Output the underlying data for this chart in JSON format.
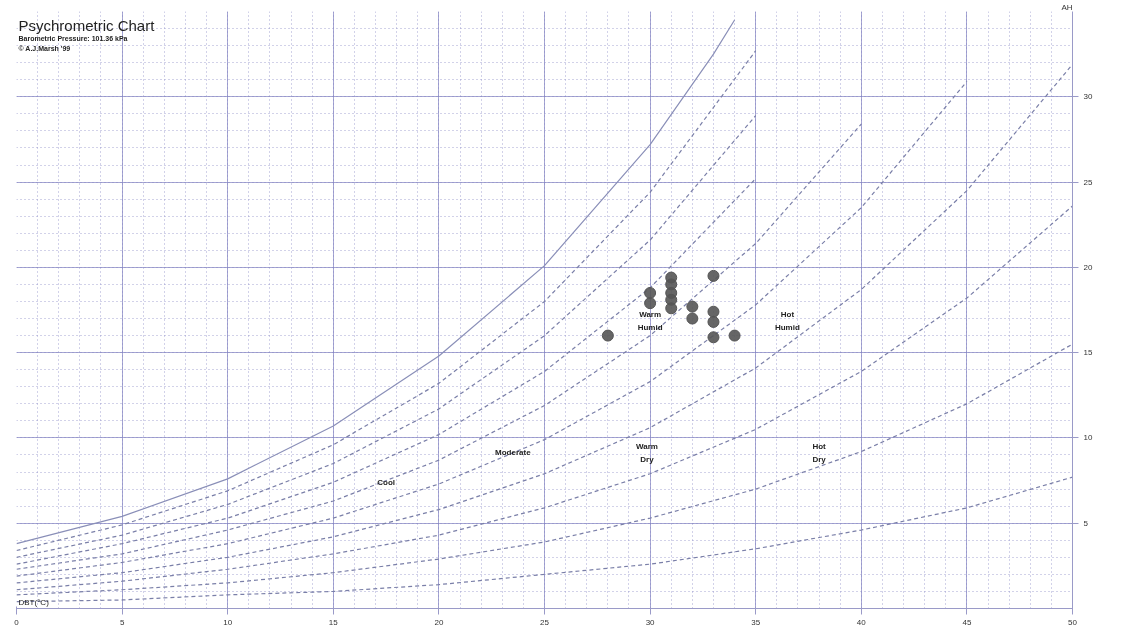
{
  "chart_data": {
    "type": "scatter",
    "title": "Psychrometric Chart",
    "subtitle": "Barometric Pressure: 101.36 kPa",
    "xlabel": "DBT(°C)",
    "ylabel": "AH",
    "xlim": [
      0,
      50
    ],
    "ylim": [
      0,
      35
    ],
    "xticks": [
      0,
      5,
      10,
      15,
      20,
      25,
      30,
      35,
      40,
      45,
      50
    ],
    "yticks": [
      5,
      10,
      15,
      20,
      25,
      30
    ],
    "grid": true,
    "series": [
      {
        "type": "line",
        "line_style": "solid",
        "color": "#8a8fb8",
        "x": [
          0,
          5,
          10,
          15,
          20,
          25,
          30,
          33,
          34
        ],
        "values": [
          3.8,
          5.4,
          7.6,
          10.7,
          14.8,
          20.1,
          27.2,
          32.5,
          34.5
        ]
      },
      {
        "type": "line",
        "line_style": "dashed",
        "color": "#7a7fa8",
        "x": [
          0,
          5,
          10,
          15,
          20,
          25,
          30,
          35
        ],
        "values": [
          3.4,
          4.9,
          6.9,
          9.6,
          13.2,
          18.0,
          24.4,
          32.7
        ]
      },
      {
        "type": "line",
        "line_style": "dashed",
        "color": "#7a7fa8",
        "x": [
          0,
          5,
          10,
          15,
          20,
          25,
          30,
          35
        ],
        "values": [
          3.0,
          4.3,
          6.1,
          8.5,
          11.7,
          16.0,
          21.6,
          28.9
        ]
      },
      {
        "type": "line",
        "line_style": "dashed",
        "color": "#7a7fa8",
        "x": [
          0,
          5,
          10,
          15,
          20,
          25,
          30,
          35
        ],
        "values": [
          2.6,
          3.8,
          5.3,
          7.4,
          10.2,
          13.9,
          18.8,
          25.2
        ]
      },
      {
        "type": "line",
        "line_style": "dashed",
        "color": "#7a7fa8",
        "x": [
          0,
          5,
          10,
          15,
          20,
          25,
          30,
          35,
          40
        ],
        "values": [
          2.3,
          3.2,
          4.6,
          6.3,
          8.7,
          11.9,
          16.0,
          21.4,
          28.4
        ]
      },
      {
        "type": "line",
        "line_style": "dashed",
        "color": "#7a7fa8",
        "x": [
          0,
          5,
          10,
          15,
          20,
          25,
          30,
          35,
          40,
          45
        ],
        "values": [
          1.9,
          2.7,
          3.8,
          5.3,
          7.3,
          9.9,
          13.3,
          17.8,
          23.5,
          30.9
        ]
      },
      {
        "type": "line",
        "line_style": "dashed",
        "color": "#7a7fa8",
        "x": [
          0,
          5,
          10,
          15,
          20,
          25,
          30,
          35,
          40,
          45,
          50
        ],
        "values": [
          1.5,
          2.1,
          3.0,
          4.2,
          5.8,
          7.9,
          10.6,
          14.1,
          18.7,
          24.5,
          31.9
        ]
      },
      {
        "type": "line",
        "line_style": "dashed",
        "color": "#7a7fa8",
        "x": [
          0,
          5,
          10,
          15,
          20,
          25,
          30,
          35,
          40,
          45,
          50
        ],
        "values": [
          1.1,
          1.6,
          2.3,
          3.2,
          4.3,
          5.9,
          7.9,
          10.5,
          13.9,
          18.2,
          23.6
        ]
      },
      {
        "type": "line",
        "line_style": "dashed",
        "color": "#7a7fa8",
        "x": [
          0,
          5,
          10,
          15,
          20,
          25,
          30,
          35,
          40,
          45,
          50
        ],
        "values": [
          0.8,
          1.1,
          1.5,
          2.1,
          2.9,
          3.9,
          5.3,
          7.0,
          9.2,
          12.0,
          15.5
        ]
      },
      {
        "type": "line",
        "line_style": "dashed",
        "color": "#7a7fa8",
        "x": [
          0,
          5,
          10,
          15,
          20,
          25,
          30,
          35,
          40,
          45,
          50
        ],
        "values": [
          0.4,
          0.5,
          0.8,
          1.0,
          1.4,
          2.0,
          2.6,
          3.5,
          4.6,
          5.9,
          7.7
        ]
      },
      {
        "marker": "circle",
        "color": "#555555",
        "x": [
          28,
          30,
          30,
          31,
          31,
          31,
          31,
          31,
          32,
          32,
          33,
          33,
          33,
          33,
          34
        ],
        "values": [
          16.0,
          18.5,
          17.9,
          19.4,
          19.0,
          18.5,
          18.1,
          17.6,
          17.7,
          17.0,
          19.5,
          17.4,
          16.8,
          15.9,
          16.0
        ]
      }
    ],
    "annotations": [
      "© A.J.Marsh '99",
      "Cool",
      "Moderate",
      "Warm\nDry",
      "Hot\nDry",
      "Warm\nHumid",
      "Hot\nHumid"
    ]
  }
}
